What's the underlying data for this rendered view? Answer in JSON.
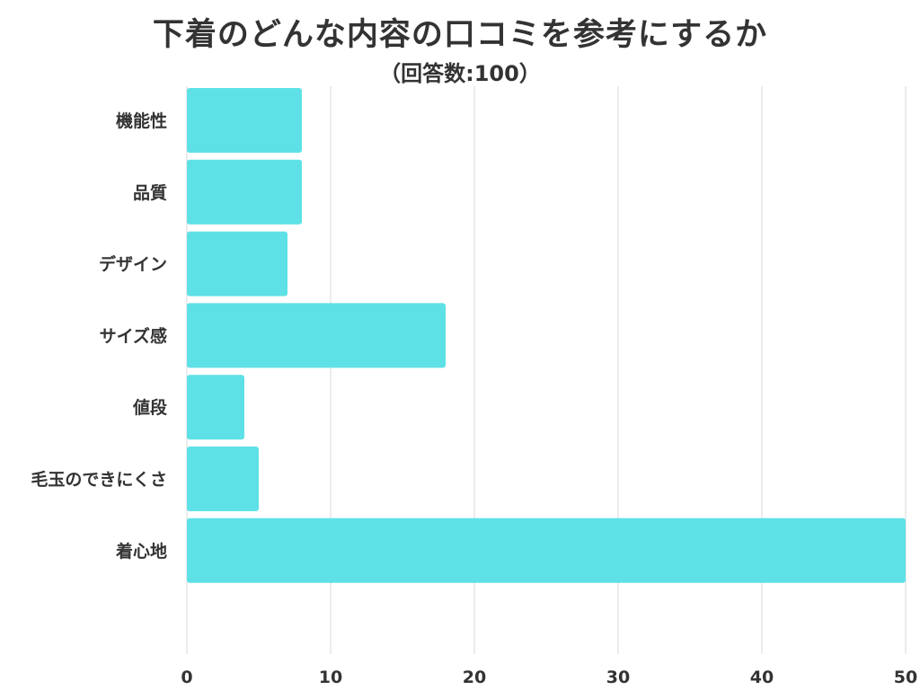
{
  "title": "下着のどんな内容の口コミを参考にするか",
  "subtitle": "（回答数:100）",
  "colors": {
    "bar": "#5ee1e6",
    "grid": "#d9d9d9",
    "text": "#333333"
  },
  "chart_data": {
    "type": "bar",
    "orientation": "horizontal",
    "categories": [
      "機能性",
      "品質",
      "デザイン",
      "サイズ感",
      "値段",
      "毛玉のできにくさ",
      "着心地"
    ],
    "values": [
      8,
      8,
      7,
      18,
      4,
      5,
      50
    ],
    "xlim": [
      0,
      50
    ],
    "xticks": [
      "0",
      "10",
      "20",
      "30",
      "40",
      "50"
    ],
    "grid": "vertical",
    "legend": "none"
  }
}
